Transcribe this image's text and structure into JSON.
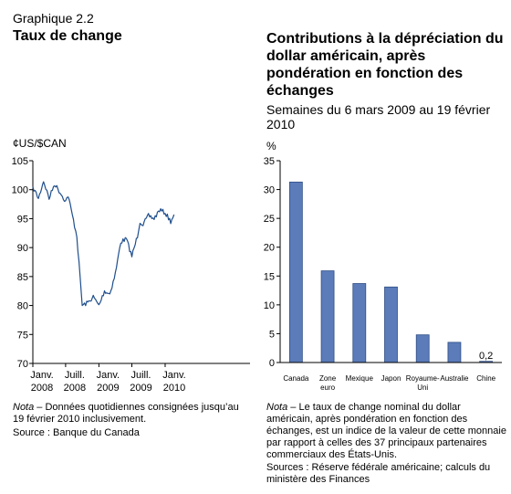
{
  "figure_number": "Graphique 2.2",
  "left": {
    "title": "Taux de change",
    "note_label": "Nota",
    "note_text": " – Données quotidiennes consignées jusqu’au 19 février 2010 inclusivement.",
    "source": "Source : Banque du Canada"
  },
  "right": {
    "title": "Contributions à la dépréciation du dollar américain, après pondération en fonction des échanges",
    "subtitle": "Semaines du 6 mars 2009 au 19 février 2010",
    "note_label": "Nota",
    "note_text": " – Le taux de change nominal du dollar américain, après pondération en fonction des échanges, est un indice de la valeur de cette monnaie par rapport à celles des 37 principaux partenaires commerciaux des États-Unis.",
    "source": "Sources : Réserve fédérale américaine; calculs du ministère des Finances"
  },
  "colors": {
    "line": "#1f4e8c",
    "bar": "#5b7bb9",
    "bar_edge": "#2f4f86",
    "axis": "#000000"
  },
  "chart_data": [
    {
      "type": "line",
      "title": "Taux de change",
      "ylabel": "¢US/$CAN",
      "ylim": [
        70,
        105
      ],
      "yticks": [
        70,
        75,
        80,
        85,
        90,
        95,
        100,
        105
      ],
      "xlim": [
        "2007-01-01",
        "2010-04-15"
      ],
      "xticks": [
        {
          "date": "2007-01-01",
          "label": [
            "Janv.",
            "2008"
          ]
        },
        {
          "date": "2007-07-01",
          "label": [
            "Juill.",
            "2008"
          ]
        },
        {
          "date": "2008-01-01",
          "label": [
            "Janv.",
            "2009"
          ]
        },
        {
          "date": "2008-07-01",
          "label": [
            "Juill.",
            "2009"
          ]
        },
        {
          "date": "2009-01-01",
          "label": [
            "Janv.",
            "2010"
          ]
        }
      ],
      "grid": false,
      "x": [
        "2007-01-01",
        "2007-02-01",
        "2007-03-01",
        "2007-04-01",
        "2007-05-01",
        "2007-06-01",
        "2007-07-01",
        "2007-07-15",
        "2007-08-01",
        "2007-09-01",
        "2007-10-01",
        "2007-11-01",
        "2007-12-01",
        "2008-01-01",
        "2008-02-01",
        "2008-03-01",
        "2008-04-01",
        "2008-05-01",
        "2008-06-01",
        "2008-07-01",
        "2008-08-01",
        "2008-08-15",
        "2008-09-01",
        "2008-10-01",
        "2008-11-01",
        "2008-12-01",
        "2009-01-01",
        "2009-02-01",
        "2009-02-19"
      ],
      "y": [
        100.5,
        98.5,
        101.5,
        98.5,
        101,
        99.5,
        98,
        99,
        96.5,
        92,
        80,
        80.5,
        81.5,
        80,
        82.5,
        82,
        85.5,
        91,
        91.5,
        88.5,
        92,
        94.5,
        94,
        95.5,
        95,
        96.5,
        96,
        94.5,
        95.7
      ]
    },
    {
      "type": "bar",
      "title": "Contributions à la dépréciation du dollar américain, après pondération en fonction des échanges",
      "ylabel": "%",
      "ylim": [
        0,
        35
      ],
      "yticks": [
        0,
        5,
        10,
        15,
        20,
        25,
        30,
        35
      ],
      "categories": [
        [
          "Canada"
        ],
        [
          "Zone",
          "euro"
        ],
        [
          "Mexique"
        ],
        [
          "Japon"
        ],
        [
          "Royaume-",
          "Uni"
        ],
        [
          "Australie"
        ],
        [
          "Chine"
        ]
      ],
      "values": [
        31.3,
        15.9,
        13.7,
        13.1,
        4.8,
        3.5,
        0.2
      ],
      "data_labels": [
        {
          "index": 6,
          "text": "0,2"
        }
      ],
      "grid": false
    }
  ]
}
